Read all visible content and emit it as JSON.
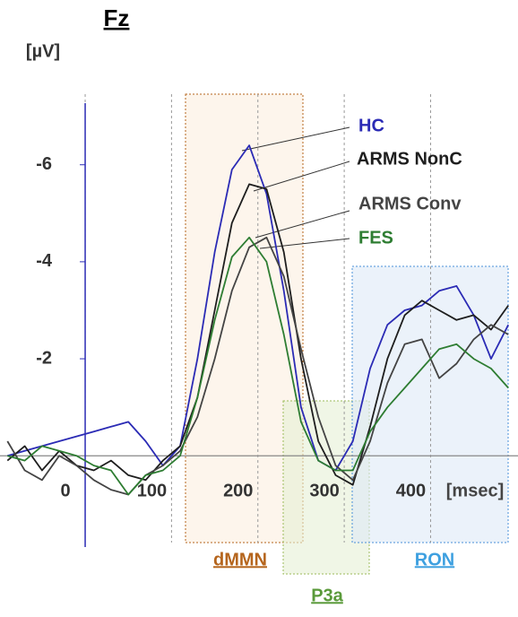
{
  "chart_data": {
    "type": "line",
    "title": "Fz",
    "y_label": "[µV]",
    "x_label": "[msec]",
    "annotations": [
      "dMMN",
      "P3a",
      "RON"
    ],
    "x": [
      -90,
      -70,
      -50,
      -30,
      -10,
      10,
      30,
      50,
      70,
      90,
      110,
      130,
      150,
      170,
      190,
      210,
      230,
      250,
      270,
      290,
      310,
      330,
      350,
      370,
      390,
      410,
      430,
      450,
      470,
      490
    ],
    "series": [
      {
        "name": "HC",
        "color": "#2b2bb5",
        "values": [
          0.0,
          -0.1,
          -0.2,
          -0.3,
          -0.4,
          -0.5,
          -0.6,
          -0.7,
          -0.3,
          0.2,
          -0.2,
          -2.0,
          -4.2,
          -5.9,
          -6.4,
          -5.4,
          -3.4,
          -1.0,
          0.1,
          0.3,
          -0.3,
          -1.8,
          -2.7,
          -3.0,
          -3.1,
          -3.4,
          -3.5,
          -2.9,
          -2.0,
          -2.7
        ]
      },
      {
        "name": "ARMS NonC",
        "color": "#1e1e1e",
        "values": [
          0.1,
          -0.2,
          0.3,
          -0.1,
          0.2,
          0.3,
          0.1,
          0.4,
          0.5,
          0.1,
          -0.2,
          -1.2,
          -3.0,
          -4.8,
          -5.6,
          -5.5,
          -4.2,
          -2.0,
          -0.3,
          0.4,
          0.6,
          -0.6,
          -2.0,
          -2.9,
          -3.2,
          -3.0,
          -2.8,
          -2.9,
          -2.6,
          -3.1
        ]
      },
      {
        "name": "ARMS Conv",
        "color": "#444444",
        "values": [
          -0.3,
          0.3,
          0.5,
          0.0,
          0.2,
          0.5,
          0.7,
          0.8,
          0.4,
          0.2,
          -0.1,
          -0.8,
          -2.0,
          -3.4,
          -4.3,
          -4.5,
          -3.7,
          -2.2,
          -0.8,
          0.2,
          0.5,
          -0.3,
          -1.5,
          -2.3,
          -2.4,
          -1.6,
          -1.9,
          -2.4,
          -2.7,
          -2.5
        ]
      },
      {
        "name": "FES",
        "color": "#2e7d32",
        "values": [
          0.0,
          0.1,
          -0.2,
          -0.1,
          0.0,
          0.2,
          0.3,
          0.8,
          0.4,
          0.3,
          0.0,
          -1.2,
          -2.8,
          -4.1,
          -4.5,
          -4.0,
          -2.5,
          -0.7,
          0.1,
          0.3,
          0.3,
          -0.5,
          -1.0,
          -1.4,
          -1.8,
          -2.2,
          -2.3,
          -2.0,
          -1.8,
          -1.4
        ]
      }
    ],
    "xlim": [
      -95,
      495
    ],
    "ylim": [
      1.9,
      -7.4
    ],
    "xticks": [
      0,
      100,
      200,
      300,
      400
    ],
    "yticks": [
      -6,
      -4,
      -2
    ]
  }
}
